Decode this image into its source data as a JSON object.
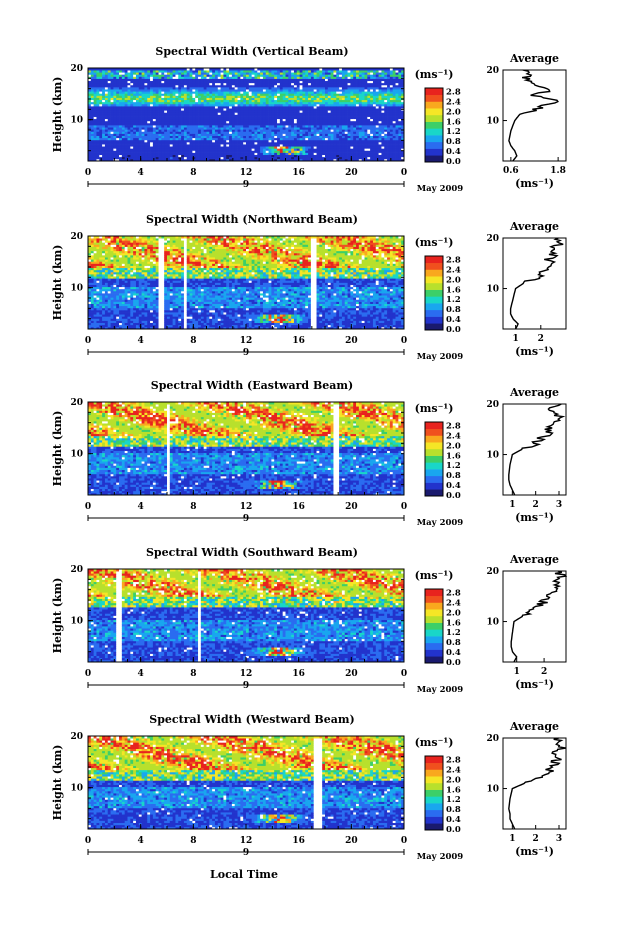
{
  "figure": {
    "xlabel": "Local Time",
    "ylabel": "Height (km)",
    "date_label": "May 2009",
    "day_label": "9",
    "unit_label": "(ms⁻¹)",
    "avg_title": "Average",
    "x_ticks": [
      "0",
      "4",
      "8",
      "12",
      "16",
      "20",
      "0"
    ],
    "y_ticks": [
      "20",
      "10"
    ],
    "colorbar_ticks": [
      "2.8",
      "2.4",
      "2.0",
      "1.6",
      "1.2",
      "0.8",
      "0.4",
      "0.0"
    ],
    "colors": [
      "#1a1a6e",
      "#2233cc",
      "#2a6cf0",
      "#19a6ef",
      "#19d6c8",
      "#3ccf68",
      "#b8e02c",
      "#f5e626",
      "#f9a81e",
      "#f0501e",
      "#e8231e"
    ]
  },
  "chart_data": [
    {
      "type": "heatmap",
      "title": "Spectral Width (Vertical Beam)",
      "xlabel": "Local Time",
      "ylabel": "Height (km)",
      "xlim": [
        0,
        24
      ],
      "ylim": [
        2,
        20
      ],
      "clim": [
        0,
        3.0
      ],
      "avg_xticks": [
        "0.6",
        "1.8"
      ],
      "avg_xlim": [
        0.4,
        2.0
      ],
      "avg_xlabel": "(ms⁻¹)",
      "profile": {
        "height": [
          2,
          3,
          4,
          5,
          6,
          8,
          10,
          11,
          12,
          13,
          14,
          15,
          16,
          17,
          18,
          19,
          20
        ],
        "value": [
          0.65,
          0.75,
          0.7,
          0.6,
          0.55,
          0.6,
          0.7,
          0.8,
          1.2,
          1.5,
          1.8,
          1.2,
          1.6,
          1.3,
          0.9,
          1.1,
          0.9
        ]
      }
    },
    {
      "type": "heatmap",
      "title": "Spectral Width (Northward Beam)",
      "xlabel": "Local Time",
      "ylabel": "Height (km)",
      "xlim": [
        0,
        24
      ],
      "ylim": [
        2,
        20
      ],
      "clim": [
        0,
        3.0
      ],
      "avg_xticks": [
        "1",
        "2"
      ],
      "avg_xlim": [
        0.5,
        3.0
      ],
      "avg_xlabel": "(ms⁻¹)",
      "profile": {
        "height": [
          2,
          3,
          4,
          5,
          6,
          8,
          10,
          11,
          12,
          13,
          14,
          15,
          16,
          17,
          18,
          19,
          20
        ],
        "value": [
          1.0,
          1.1,
          0.9,
          0.8,
          0.8,
          0.9,
          1.0,
          1.3,
          1.8,
          2.0,
          2.2,
          2.4,
          2.3,
          2.6,
          2.5,
          2.8,
          2.7
        ]
      }
    },
    {
      "type": "heatmap",
      "title": "Spectral Width (Eastward Beam)",
      "xlabel": "Local Time",
      "ylabel": "Height (km)",
      "xlim": [
        0,
        24
      ],
      "ylim": [
        2,
        20
      ],
      "clim": [
        0,
        3.0
      ],
      "avg_xticks": [
        "1",
        "2",
        "3"
      ],
      "avg_xlim": [
        0.6,
        3.3
      ],
      "avg_xlabel": "(ms⁻¹)",
      "profile": {
        "height": [
          2,
          3,
          4,
          5,
          6,
          8,
          10,
          11,
          12,
          13,
          14,
          15,
          16,
          17,
          18,
          19,
          20
        ],
        "value": [
          1.1,
          1.0,
          0.9,
          0.85,
          0.85,
          0.9,
          1.0,
          1.4,
          1.9,
          2.2,
          2.5,
          2.6,
          2.8,
          2.9,
          3.0,
          2.7,
          3.1
        ]
      }
    },
    {
      "type": "heatmap",
      "title": "Spectral Width (Southward Beam)",
      "xlabel": "Local Time",
      "ylabel": "Height (km)",
      "xlim": [
        0,
        24
      ],
      "ylim": [
        2,
        20
      ],
      "clim": [
        0,
        3.0
      ],
      "avg_xticks": [
        "1",
        "2"
      ],
      "avg_xlim": [
        0.5,
        2.8
      ],
      "avg_xlabel": "(ms⁻¹)",
      "profile": {
        "height": [
          2,
          3,
          4,
          5,
          6,
          8,
          10,
          11,
          12,
          13,
          14,
          15,
          16,
          17,
          18,
          19,
          20
        ],
        "value": [
          0.9,
          1.0,
          0.85,
          0.8,
          0.8,
          0.85,
          0.9,
          1.2,
          1.6,
          1.8,
          2.0,
          2.1,
          2.3,
          2.4,
          2.5,
          2.6,
          2.5
        ]
      }
    },
    {
      "type": "heatmap",
      "title": "Spectral Width (Westward Beam)",
      "xlabel": "Local Time",
      "ylabel": "Height (km)",
      "xlim": [
        0,
        24
      ],
      "ylim": [
        2,
        20
      ],
      "clim": [
        0,
        3.0
      ],
      "avg_xticks": [
        "1",
        "2",
        "3"
      ],
      "avg_xlim": [
        0.6,
        3.3
      ],
      "avg_xlabel": "(ms⁻¹)",
      "profile": {
        "height": [
          2,
          3,
          4,
          5,
          6,
          8,
          10,
          11,
          12,
          13,
          14,
          15,
          16,
          17,
          18,
          19,
          20
        ],
        "value": [
          1.1,
          1.0,
          0.9,
          0.9,
          0.85,
          0.9,
          1.0,
          1.5,
          2.1,
          2.5,
          2.7,
          2.8,
          3.0,
          2.9,
          3.1,
          2.8,
          3.0
        ]
      }
    }
  ]
}
